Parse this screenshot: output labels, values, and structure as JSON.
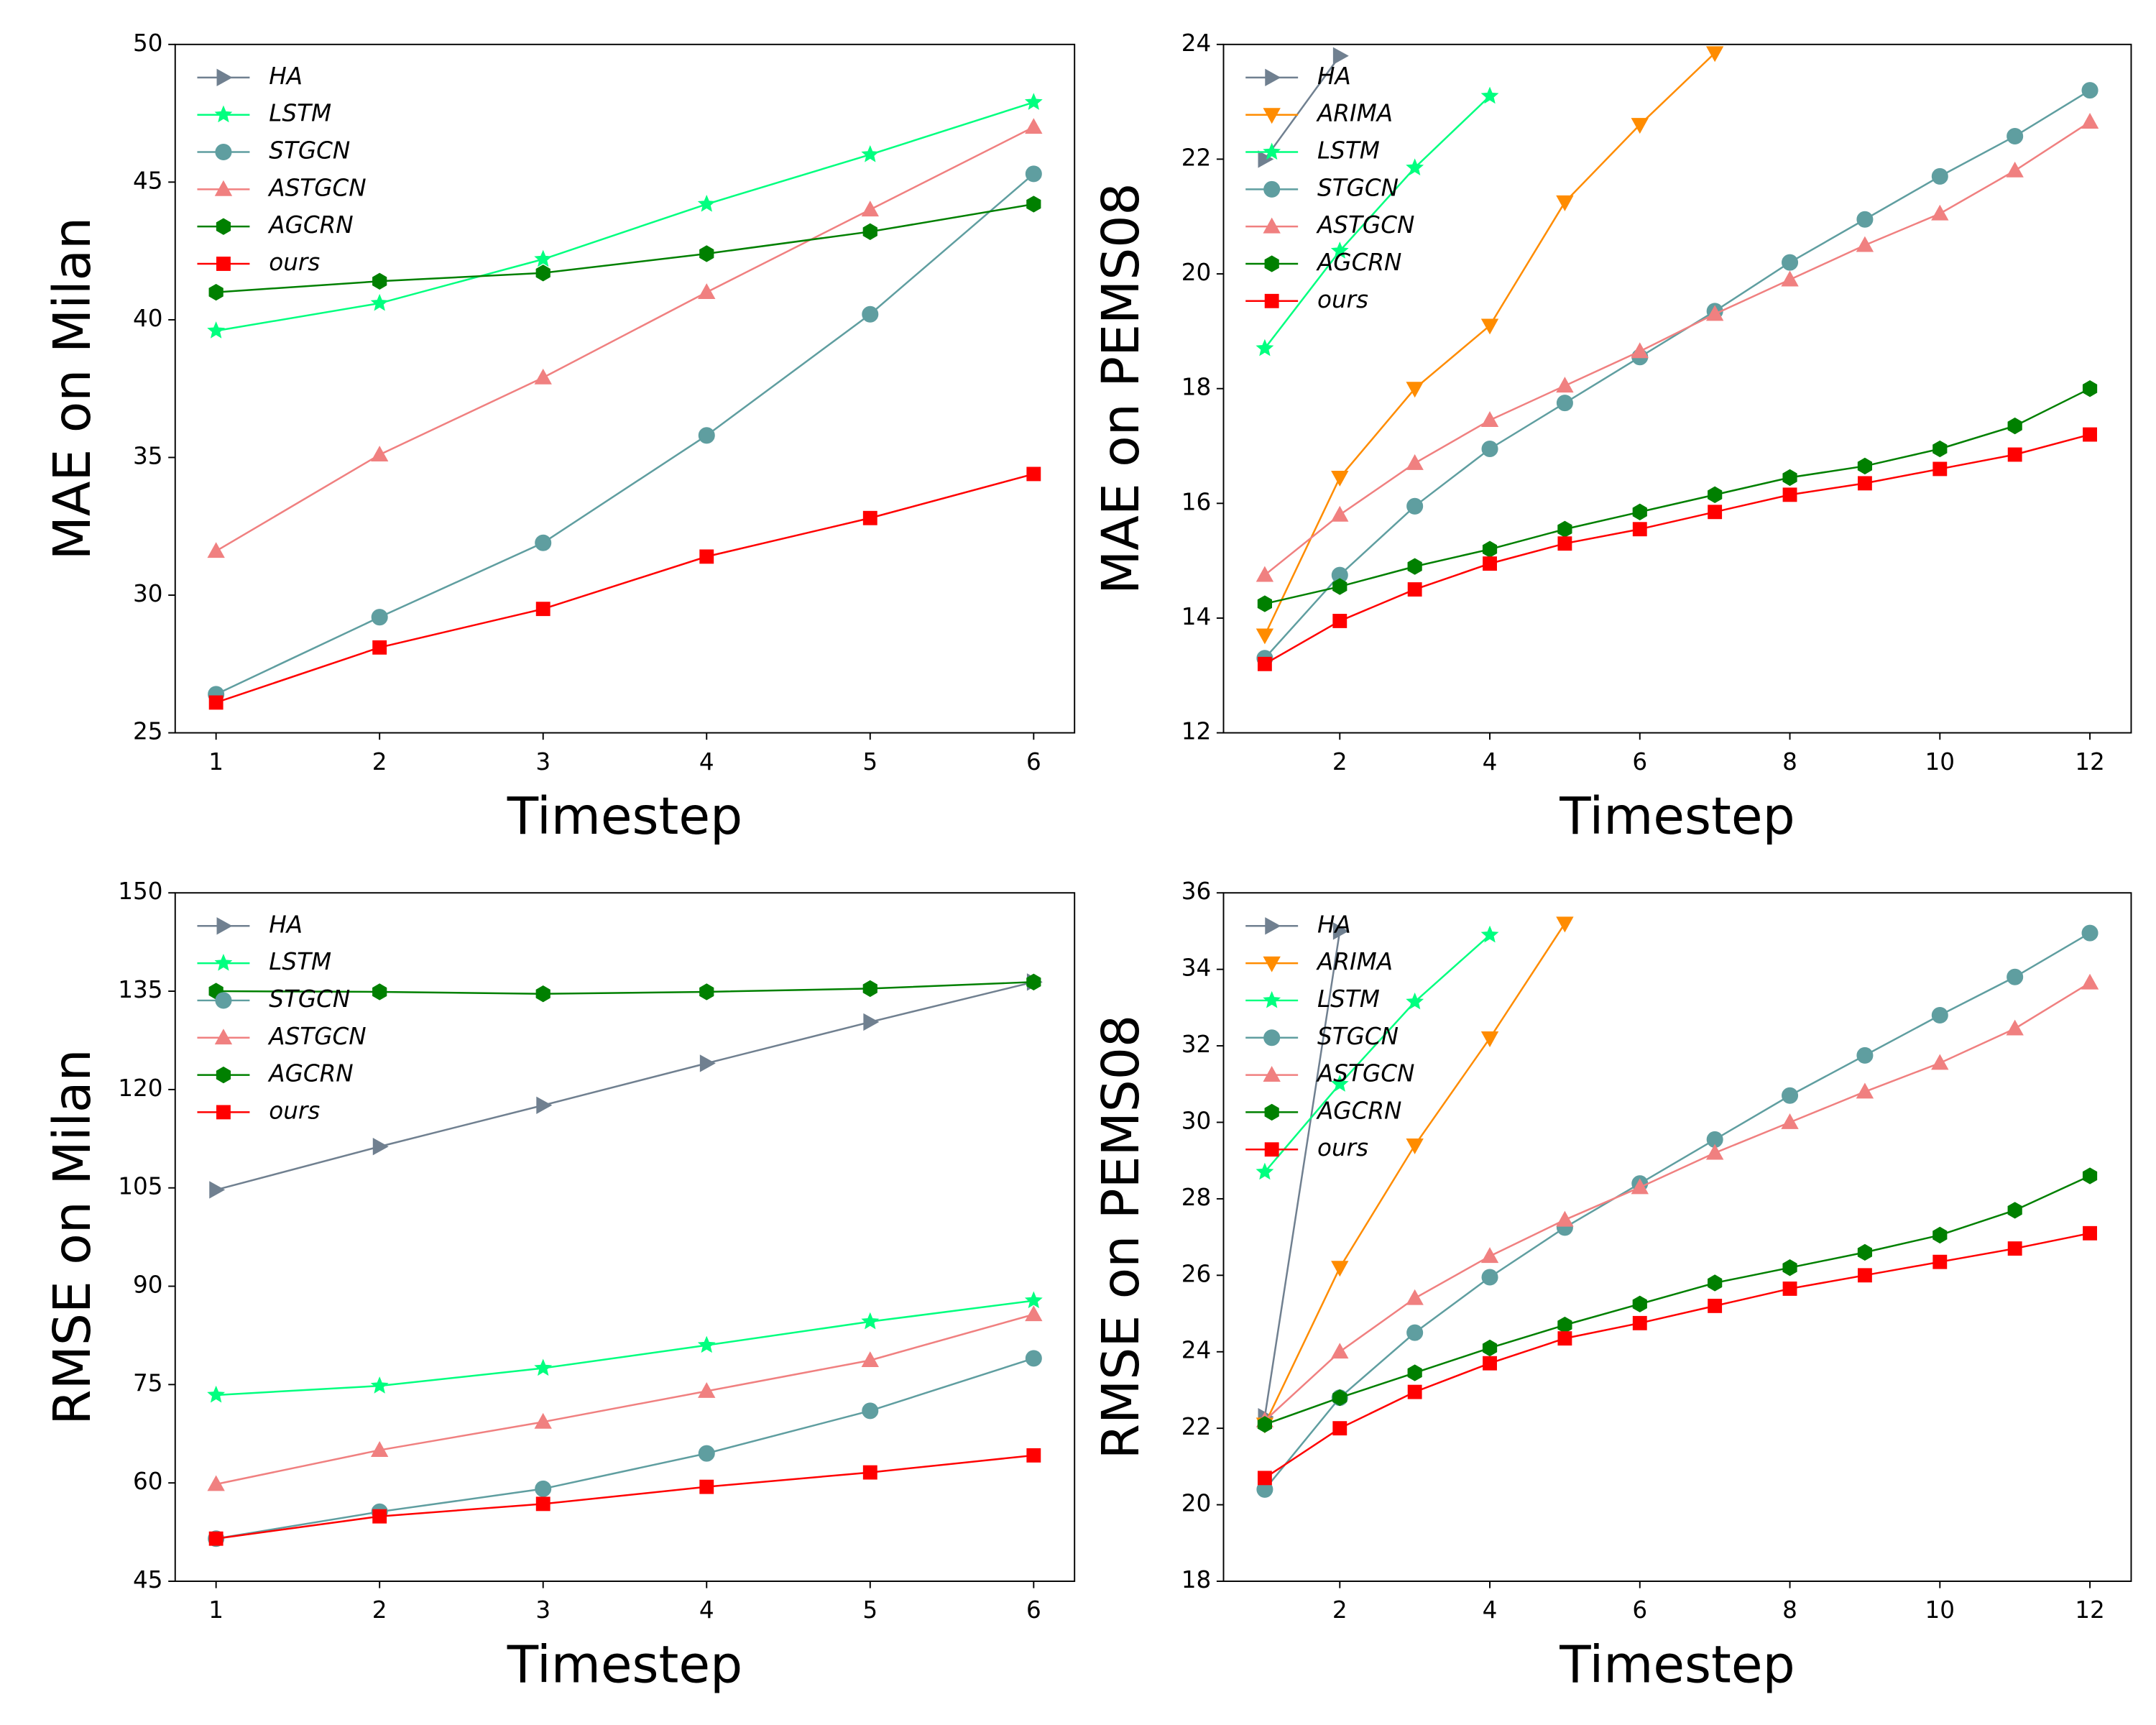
{
  "chart_data": [
    {
      "type": "line",
      "ylabel": "MAE on Milan",
      "xlabel": "Timestep",
      "legend": "upper left",
      "x": [
        1,
        2,
        3,
        4,
        5,
        6
      ],
      "xlim": [
        0.75,
        6.25
      ],
      "xticks": [
        1,
        2,
        3,
        4,
        5,
        6
      ],
      "ylim": [
        25,
        50
      ],
      "yticks": [
        25,
        30,
        35,
        40,
        45,
        50
      ],
      "series": [
        {
          "name": "HA",
          "color": "#708090",
          "marker": "triangle-right",
          "values": [
            null,
            null,
            null,
            null,
            null,
            null
          ]
        },
        {
          "name": "LSTM",
          "color": "#00ff7f",
          "marker": "star",
          "values": [
            39.6,
            40.6,
            42.2,
            44.2,
            46.0,
            47.9
          ]
        },
        {
          "name": "STGCN",
          "color": "#5f9ea0",
          "marker": "circle",
          "values": [
            26.4,
            29.2,
            31.9,
            35.8,
            40.2,
            45.3
          ]
        },
        {
          "name": "ASTGCN",
          "color": "#f08080",
          "marker": "triangle-up",
          "values": [
            31.6,
            35.1,
            37.9,
            41.0,
            44.0,
            47.0
          ]
        },
        {
          "name": "AGCRN",
          "color": "#008000",
          "marker": "hexagon",
          "values": [
            41.0,
            41.4,
            41.7,
            42.4,
            43.2,
            44.2
          ]
        },
        {
          "name": "ours",
          "color": "#ff0000",
          "marker": "square",
          "values": [
            26.1,
            28.1,
            29.5,
            31.4,
            32.8,
            34.4
          ]
        }
      ]
    },
    {
      "type": "line",
      "ylabel": "MAE on PEMS08",
      "xlabel": "Timestep",
      "legend": "upper left",
      "x": [
        1,
        2,
        3,
        4,
        5,
        6,
        7,
        8,
        9,
        10,
        11,
        12
      ],
      "xlim": [
        0.45,
        12.55
      ],
      "xticks": [
        2,
        4,
        6,
        8,
        10,
        12
      ],
      "ylim": [
        12,
        24
      ],
      "yticks": [
        12,
        14,
        16,
        18,
        20,
        22,
        24
      ],
      "series": [
        {
          "name": "HA",
          "color": "#708090",
          "marker": "triangle-right",
          "values": [
            22.0,
            23.8,
            null,
            null,
            null,
            null,
            null,
            null,
            null,
            null,
            null,
            null
          ]
        },
        {
          "name": "ARIMA",
          "color": "#ff8c00",
          "marker": "triangle-down",
          "values": [
            13.7,
            16.45,
            18.0,
            19.1,
            21.25,
            22.6,
            23.85,
            null,
            null,
            null,
            null,
            null
          ]
        },
        {
          "name": "LSTM",
          "color": "#00ff7f",
          "marker": "star",
          "values": [
            18.7,
            20.4,
            21.85,
            23.1,
            null,
            null,
            null,
            null,
            null,
            null,
            null,
            null
          ]
        },
        {
          "name": "STGCN",
          "color": "#5f9ea0",
          "marker": "circle",
          "values": [
            13.3,
            14.75,
            15.95,
            16.95,
            17.75,
            18.55,
            19.35,
            20.2,
            20.95,
            21.7,
            22.4,
            23.2
          ]
        },
        {
          "name": "ASTGCN",
          "color": "#f08080",
          "marker": "triangle-up",
          "values": [
            14.75,
            15.8,
            16.7,
            17.45,
            18.05,
            18.65,
            19.3,
            19.9,
            20.5,
            21.05,
            21.8,
            22.65
          ]
        },
        {
          "name": "AGCRN",
          "color": "#008000",
          "marker": "hexagon",
          "values": [
            14.25,
            14.55,
            14.9,
            15.2,
            15.55,
            15.85,
            16.15,
            16.45,
            16.65,
            16.95,
            17.35,
            18.0
          ]
        },
        {
          "name": "ours",
          "color": "#ff0000",
          "marker": "square",
          "values": [
            13.2,
            13.95,
            14.5,
            14.95,
            15.3,
            15.55,
            15.85,
            16.15,
            16.35,
            16.6,
            16.85,
            17.2
          ]
        }
      ]
    },
    {
      "type": "line",
      "ylabel": "RMSE on Milan",
      "xlabel": "Timestep",
      "legend": "upper left",
      "x": [
        1,
        2,
        3,
        4,
        5,
        6
      ],
      "xlim": [
        0.75,
        6.25
      ],
      "xticks": [
        1,
        2,
        3,
        4,
        5,
        6
      ],
      "ylim": [
        45,
        150
      ],
      "yticks": [
        45,
        60,
        75,
        90,
        105,
        120,
        135,
        150
      ],
      "series": [
        {
          "name": "HA",
          "color": "#708090",
          "marker": "triangle-right",
          "values": [
            104.7,
            111.3,
            117.6,
            124.0,
            130.3,
            136.4
          ]
        },
        {
          "name": "LSTM",
          "color": "#00ff7f",
          "marker": "star",
          "values": [
            73.4,
            74.8,
            77.5,
            81.0,
            84.6,
            87.8
          ]
        },
        {
          "name": "STGCN",
          "color": "#5f9ea0",
          "marker": "circle",
          "values": [
            51.5,
            55.6,
            59.1,
            64.5,
            71.0,
            79.0
          ]
        },
        {
          "name": "ASTGCN",
          "color": "#f08080",
          "marker": "triangle-up",
          "values": [
            59.8,
            65.0,
            69.3,
            74.0,
            78.7,
            85.7
          ]
        },
        {
          "name": "AGCRN",
          "color": "#008000",
          "marker": "hexagon",
          "values": [
            135.0,
            134.9,
            134.6,
            134.9,
            135.4,
            136.4
          ]
        },
        {
          "name": "ours",
          "color": "#ff0000",
          "marker": "square",
          "values": [
            51.5,
            54.9,
            56.8,
            59.4,
            61.6,
            64.2
          ]
        }
      ]
    },
    {
      "type": "line",
      "ylabel": "RMSE on PEMS08",
      "xlabel": "Timestep",
      "legend": "upper left",
      "x": [
        1,
        2,
        3,
        4,
        5,
        6,
        7,
        8,
        9,
        10,
        11,
        12
      ],
      "xlim": [
        0.45,
        12.55
      ],
      "xticks": [
        2,
        4,
        6,
        8,
        10,
        12
      ],
      "ylim": [
        18,
        36
      ],
      "yticks": [
        18,
        20,
        22,
        24,
        26,
        28,
        30,
        32,
        34,
        36
      ],
      "series": [
        {
          "name": "HA",
          "color": "#708090",
          "marker": "triangle-right",
          "values": [
            22.3,
            35.0,
            null,
            null,
            null,
            null,
            null,
            null,
            null,
            null,
            null,
            null
          ]
        },
        {
          "name": "ARIMA",
          "color": "#ff8c00",
          "marker": "triangle-down",
          "values": [
            22.1,
            26.2,
            29.4,
            32.2,
            35.2,
            null,
            null,
            null,
            null,
            null,
            null,
            null
          ]
        },
        {
          "name": "LSTM",
          "color": "#00ff7f",
          "marker": "star",
          "values": [
            28.7,
            31.0,
            33.15,
            34.9,
            null,
            null,
            null,
            null,
            null,
            null,
            null,
            null
          ]
        },
        {
          "name": "STGCN",
          "color": "#5f9ea0",
          "marker": "circle",
          "values": [
            20.4,
            22.8,
            24.5,
            25.95,
            27.25,
            28.4,
            29.55,
            30.7,
            31.75,
            32.8,
            33.8,
            34.95
          ]
        },
        {
          "name": "ASTGCN",
          "color": "#f08080",
          "marker": "triangle-up",
          "values": [
            22.2,
            24.0,
            25.4,
            26.5,
            27.45,
            28.3,
            29.2,
            30.0,
            30.8,
            31.55,
            32.45,
            33.65
          ]
        },
        {
          "name": "AGCRN",
          "color": "#008000",
          "marker": "hexagon",
          "values": [
            22.1,
            22.8,
            23.45,
            24.1,
            24.7,
            25.25,
            25.8,
            26.2,
            26.6,
            27.05,
            27.7,
            28.6
          ]
        },
        {
          "name": "ours",
          "color": "#ff0000",
          "marker": "square",
          "values": [
            20.7,
            22.0,
            22.95,
            23.7,
            24.35,
            24.75,
            25.2,
            25.65,
            26.0,
            26.35,
            26.7,
            27.1
          ]
        }
      ]
    }
  ]
}
